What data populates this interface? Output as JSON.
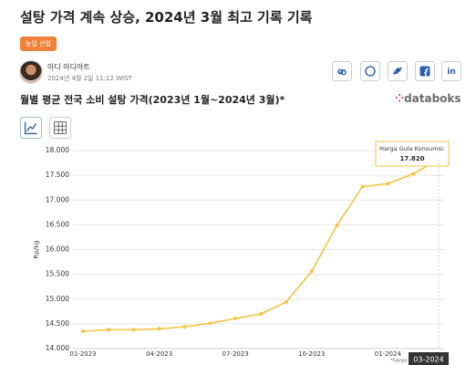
{
  "header": {
    "title": "설탕 가격 계속 상승, 2024년 3월 최고 기록 기록",
    "tag": "농업 산업",
    "author": "아디 아디아트",
    "date": "2024년 4월 2일 11:12 WIST"
  },
  "chart_data": {
    "type": "line",
    "title": "월별 평균 전국 소비 설탕 가격(2023년 1월~2024년 3월)*",
    "source_logo": "databoks",
    "y_label": "Rp/kg",
    "footnote": "*harga di tingkat ped",
    "categories": [
      "01-2023",
      null,
      null,
      "04-2023",
      null,
      null,
      "07-2023",
      null,
      null,
      "10-2023",
      null,
      null,
      "01-2024",
      null,
      "03-2024"
    ],
    "series": [
      {
        "name": "Harga Gula Konsumsi:",
        "color": "#f5c242",
        "values": [
          14350,
          14380,
          14380,
          14400,
          14440,
          14510,
          14610,
          14700,
          14940,
          15560,
          16490,
          17270,
          17330,
          17530,
          17820
        ],
        "value_labels": [
          null,
          null,
          null,
          null,
          null,
          null,
          null,
          null,
          null,
          null,
          null,
          null,
          null,
          null,
          "17.820"
        ]
      }
    ],
    "ylim": [
      14000,
      18000
    ],
    "yticks": [
      {
        "value": 14000,
        "label": "14.000"
      },
      {
        "value": 14500,
        "label": "14.500"
      },
      {
        "value": 15000,
        "label": "15.000"
      },
      {
        "value": 15500,
        "label": "15.500"
      },
      {
        "value": 16000,
        "label": "16.000"
      },
      {
        "value": 16500,
        "label": "16.500"
      },
      {
        "value": 17000,
        "label": "17.000"
      },
      {
        "value": 17500,
        "label": "17.500"
      },
      {
        "value": 18000,
        "label": "18.000"
      }
    ],
    "grid": true
  }
}
